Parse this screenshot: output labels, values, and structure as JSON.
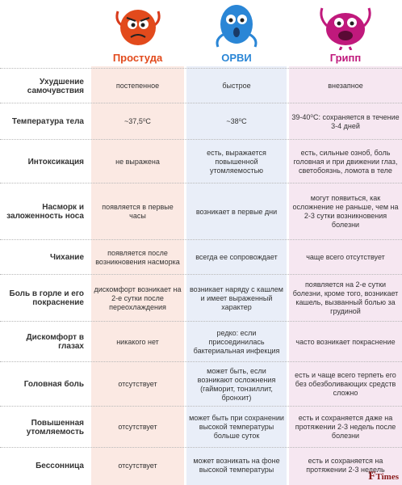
{
  "columns": [
    {
      "name": "Простуда",
      "color": "#e24a1c"
    },
    {
      "name": "ОРВИ",
      "color": "#2a86d6"
    },
    {
      "name": "Грипп",
      "color": "#c0197c"
    }
  ],
  "rows": [
    {
      "label": "Ухудшение самочувствия",
      "v1": "постепенное",
      "v2": "быстрое",
      "v3": "внезапное"
    },
    {
      "label": "Температура тела",
      "v1": "~37,5⁰С",
      "v2": "~38⁰С",
      "v3": "39-40⁰С: сохраняется в течение 3-4 дней"
    },
    {
      "label": "Интоксикация",
      "v1": "не выражена",
      "v2": "есть, выражается повышенной утомляемостью",
      "v3": "есть, сильные озноб, боль головная и при движении глаз, светобоязнь, ломота в теле"
    },
    {
      "label": "Насморк и заложенность носа",
      "v1": "появляется в первые часы",
      "v2": "возникает в первые дни",
      "v3": "могут появиться, как осложнение не раньше, чем на 2-3 сутки возникновения болезни"
    },
    {
      "label": "Чихание",
      "v1": "появляется после возникновения насморка",
      "v2": "всегда ее сопровождает",
      "v3": "чаще всего отсутствует"
    },
    {
      "label": "Боль в горле и его покраснение",
      "v1": "дискомфорт возникает на 2-е сутки после переохлаждения",
      "v2": "возникает наряду с кашлем и имеет выраженный характер",
      "v3": "появляется на 2-е сутки болезни, кроме того, возникает кашель, вызванный болью за грудиной"
    },
    {
      "label": "Дискомфорт в глазах",
      "v1": "никакого нет",
      "v2": "редко: если присоединилась бактериальная инфекция",
      "v3": "часто возникает покраснение"
    },
    {
      "label": "Головная боль",
      "v1": "отсутствует",
      "v2": "может быть, если возникают осложнения (гайморит, тонзиллит, бронхит)",
      "v3": "есть и чаще всего терпеть его без обезболивающих средств сложно"
    },
    {
      "label": "Повышенная утомляемость",
      "v1": "отсутствует",
      "v2": "может быть при сохранении высокой температуры больше суток",
      "v3": "есть и сохраняется даже на протяжении 2-3 недель после болезни"
    },
    {
      "label": "Бессонница",
      "v1": "отсутствует",
      "v2": "может возникать на фоне высокой температуры",
      "v3": "есть и сохраняется на протяжении 2-3 недель"
    }
  ],
  "watermark": {
    "lead": "F",
    "rest": "Times"
  }
}
